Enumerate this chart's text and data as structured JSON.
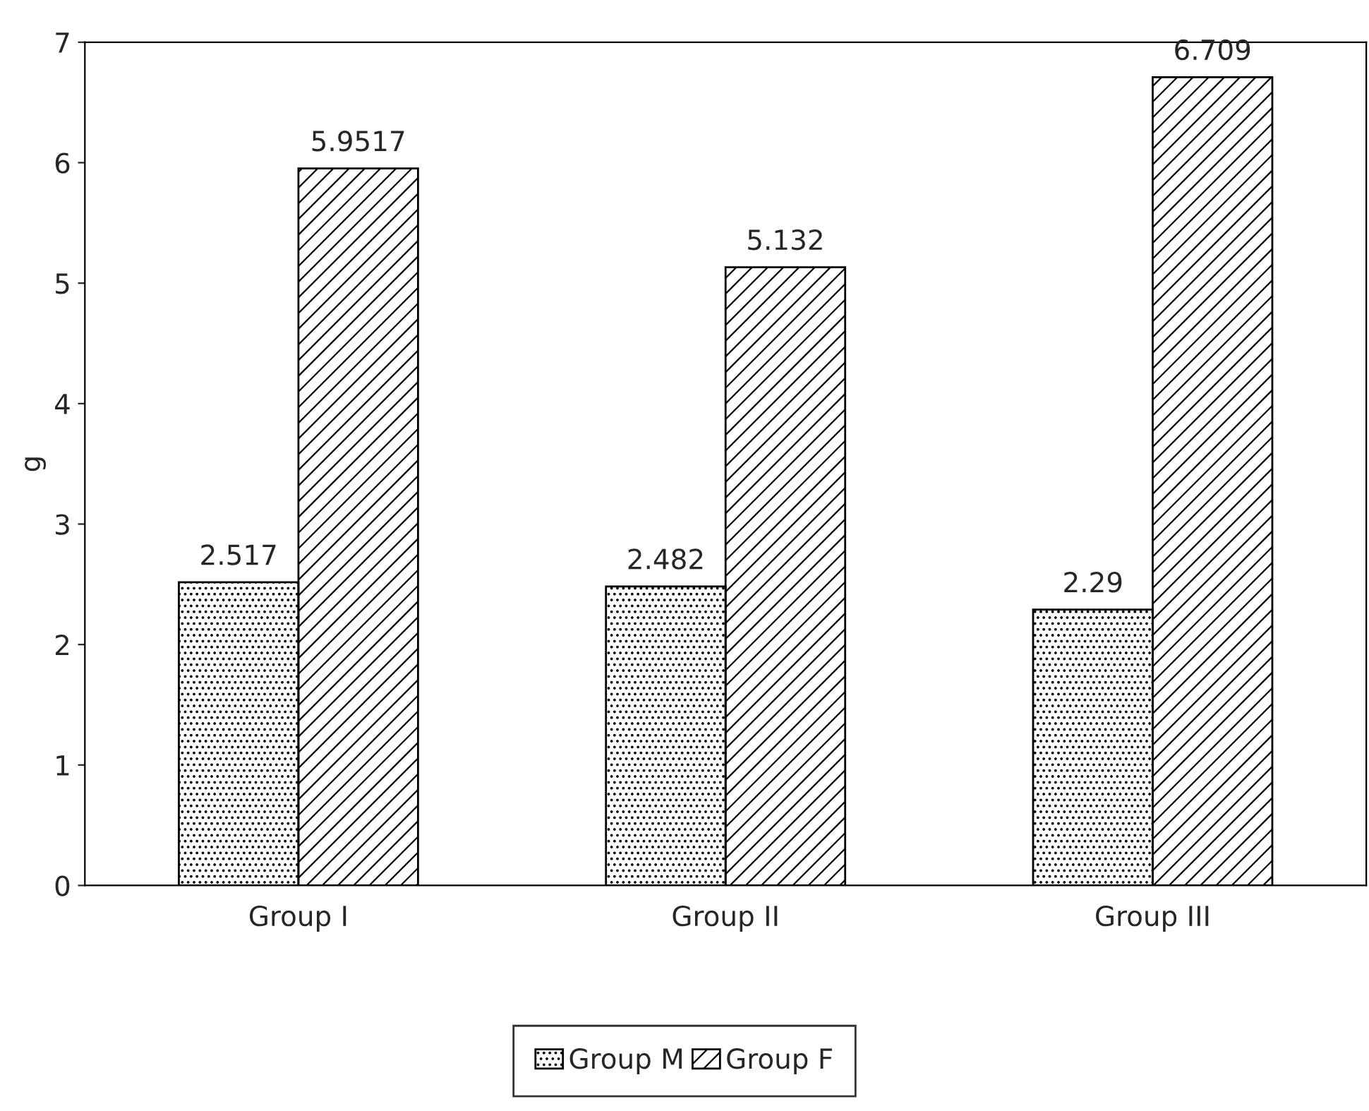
{
  "chart_data": {
    "type": "bar",
    "ylabel": "g",
    "categories": [
      "Group I",
      "Group II",
      "Group III"
    ],
    "series": [
      {
        "name": "Group M",
        "color": "#000000",
        "values": [
          2.517,
          2.482,
          2.29
        ]
      },
      {
        "name": "Group F",
        "color": "#000000",
        "values": [
          5.9517,
          5.132,
          6.709
        ]
      }
    ],
    "ylim": [
      0,
      7
    ],
    "yticks": [
      0,
      1,
      2,
      3,
      4,
      5,
      6,
      7
    ],
    "data_labels": true,
    "grid": false,
    "legend": "bottom"
  }
}
